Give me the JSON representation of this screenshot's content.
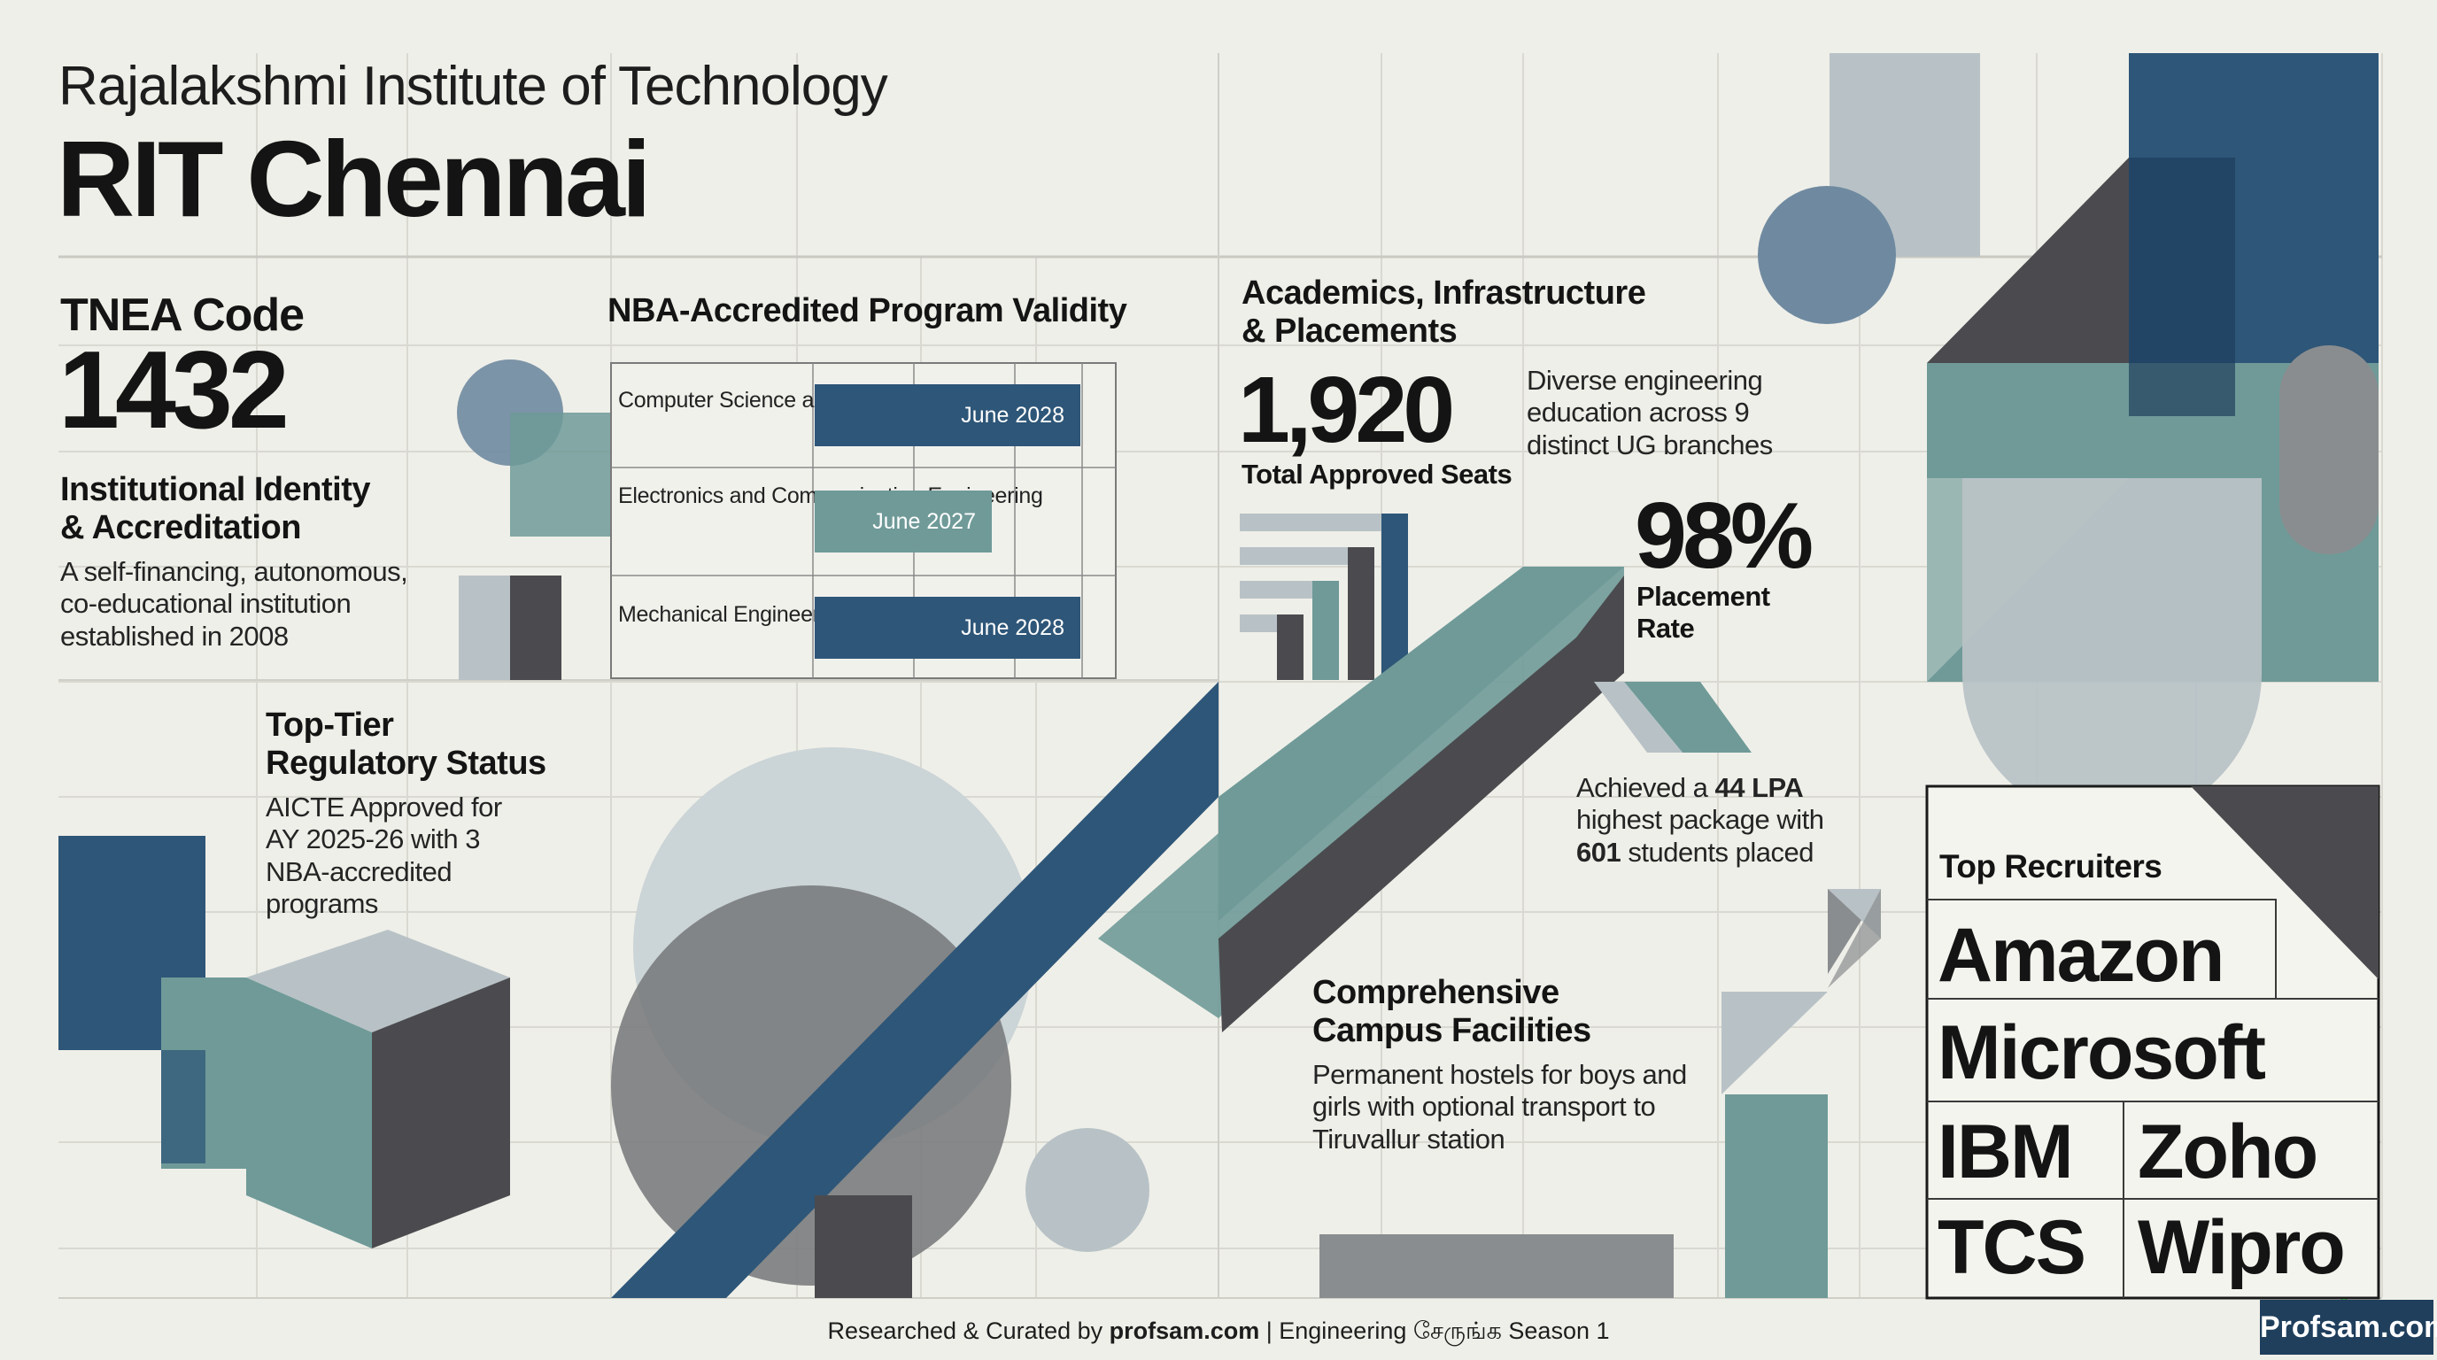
{
  "header": {
    "subtitle": "Rajalakshmi Institute of Technology",
    "title": "RIT Chennai"
  },
  "tnea": {
    "label": "TNEA Code",
    "code": "1432"
  },
  "identity": {
    "heading": "Institutional Identity\n& Accreditation",
    "body": "A self-financing, autonomous,\nco-educational institution\nestablished in 2008"
  },
  "regulatory": {
    "heading": "Top-Tier\nRegulatory Status",
    "body": "AICTE Approved for\nAY 2025-26 with 3\nNBA-accredited\nprograms"
  },
  "nba": {
    "heading": "NBA-Accredited Program Validity",
    "programs": [
      {
        "name": "Computer Science\nand Engineering",
        "validity": "June 2028",
        "years": 3
      },
      {
        "name": "Electronics and\nCommunication\nEngineering",
        "validity": "June 2027",
        "years": 2
      },
      {
        "name": "Mechanical\nEngineering",
        "validity": "June 2028",
        "years": 3
      }
    ]
  },
  "academics": {
    "heading": "Academics, Infrastructure\n& Placements",
    "seats_value": "1,920",
    "seats_label": "Total Approved Seats",
    "branches_text": "Diverse engineering\neducation across 9\ndistinct UG branches",
    "placement_value": "98%",
    "placement_label": "Placement\nRate",
    "package_prefix": "Achieved a ",
    "package_value": "44 LPA",
    "package_mid": "\nhighest package with\n",
    "students_value": "601",
    "package_suffix": " students placed"
  },
  "campus": {
    "heading": "Comprehensive\nCampus Facilities",
    "body": "Permanent hostels for boys and\ngirls with optional transport to\nTiruvallur station"
  },
  "recruiters": {
    "heading": "Top Recruiters",
    "names": [
      "Amazon",
      "Microsoft",
      "IBM",
      "Zoho",
      "TCS",
      "Wipro"
    ]
  },
  "footer": {
    "prefix": "Researched & Curated by ",
    "site": "profsam.com",
    "suffix": " | Engineering சேருங்க Season 1"
  },
  "badge": {
    "text": "Profsam.com"
  },
  "colors": {
    "background": "#efefe9",
    "navy": "#2e5678",
    "teal": "#6f9a98",
    "charcoal": "#4b4b4f",
    "gray": "#8a8d8f",
    "light": "#b8c2c6"
  }
}
